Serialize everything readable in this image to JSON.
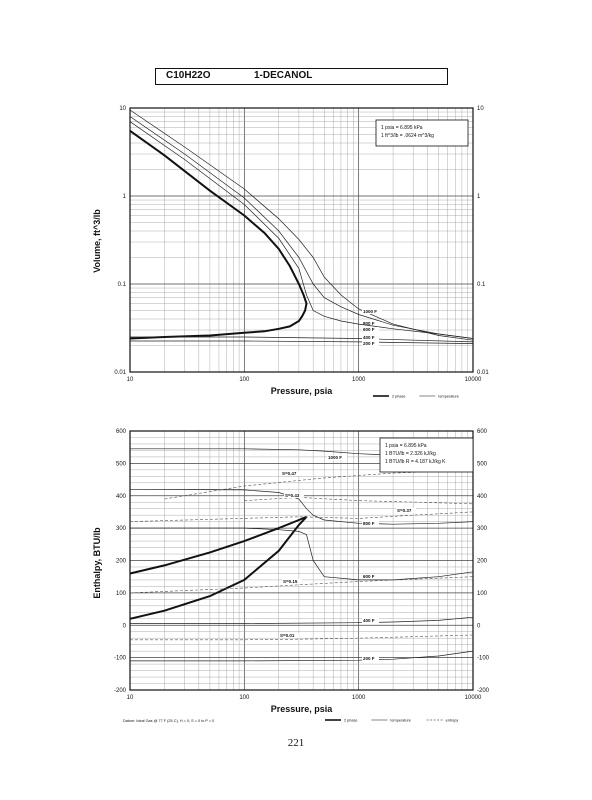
{
  "header": {
    "formula": "C10H22O",
    "name": "1-DECANOL"
  },
  "page_number": "221",
  "chart_data": [
    {
      "type": "line",
      "xlabel": "Pressure, psia",
      "ylabel": "Volume, ft^3/lb",
      "xscale": "log",
      "yscale": "log",
      "xlim": [
        10,
        10000
      ],
      "ylim": [
        0.01,
        10
      ],
      "x_ticks": [
        "10",
        "100",
        "1000",
        "10000"
      ],
      "y_ticks": [
        "0.01",
        "0.1",
        "1",
        "10"
      ],
      "conversions": [
        "1 psia = 6.895 kPa",
        "1 ft^3/lb = .0624 m^3/kg"
      ],
      "legend": [
        "2 phase",
        "temperature"
      ],
      "legend_placement": "bottom-right",
      "grid": true,
      "series": [
        {
          "kind": "2 phase",
          "x": [
            10,
            20,
            50,
            100,
            150,
            200,
            250,
            300,
            330,
            350,
            340,
            320,
            300,
            250,
            200,
            150,
            100,
            50,
            20,
            10
          ],
          "y": [
            5.5,
            2.9,
            1.15,
            0.6,
            0.38,
            0.25,
            0.16,
            0.1,
            0.075,
            0.06,
            0.05,
            0.043,
            0.038,
            0.033,
            0.031,
            0.029,
            0.028,
            0.026,
            0.025,
            0.024
          ]
        },
        {
          "name": "1000 F",
          "x": [
            10,
            30,
            100,
            200,
            300,
            400,
            500,
            700,
            1000,
            2000,
            5000,
            10000
          ],
          "y": [
            9.5,
            3.6,
            1.2,
            0.55,
            0.32,
            0.2,
            0.12,
            0.075,
            0.052,
            0.035,
            0.026,
            0.023
          ]
        },
        {
          "name": "800 F",
          "x": [
            10,
            30,
            100,
            200,
            300,
            400,
            500,
            700,
            1000,
            2000,
            5000,
            10000
          ],
          "y": [
            8.0,
            3.0,
            0.95,
            0.4,
            0.2,
            0.1,
            0.07,
            0.055,
            0.045,
            0.034,
            0.027,
            0.024
          ]
        },
        {
          "name": "600 F",
          "x": [
            10,
            30,
            100,
            200,
            300,
            350,
            400,
            500,
            700,
            1000,
            2000,
            5000,
            10000
          ],
          "y": [
            7.0,
            2.6,
            0.8,
            0.33,
            0.15,
            0.075,
            0.05,
            0.043,
            0.038,
            0.035,
            0.031,
            0.027,
            0.024
          ]
        },
        {
          "name": "400 F",
          "x": [
            10,
            100,
            1000,
            10000
          ],
          "y": [
            0.025,
            0.025,
            0.024,
            0.022
          ]
        },
        {
          "name": "200 F",
          "x": [
            10,
            100,
            1000,
            10000
          ],
          "y": [
            0.0225,
            0.0225,
            0.022,
            0.021
          ]
        }
      ]
    },
    {
      "type": "line",
      "xlabel": "Pressure, psia",
      "ylabel": "Enthalpy, BTU/lb",
      "xscale": "log",
      "yscale": "linear",
      "xlim": [
        10,
        10000
      ],
      "ylim": [
        -200,
        600
      ],
      "x_ticks": [
        "10",
        "100",
        "1000",
        "10000"
      ],
      "y_ticks": [
        "-200",
        "-100",
        "0",
        "100",
        "200",
        "300",
        "400",
        "500",
        "600"
      ],
      "conversions": [
        "1 psia = 6.895 kPa",
        "1 BTU/lb = 2.326 kJ/kg",
        "1 BTU/lb R = 4.187 kJ/kg K"
      ],
      "footnote": "Datum: Ideal Gas @ 77 F (25 C), H = 0, S = 0 to P = 0",
      "legend": [
        "2 phase",
        "temperature",
        "entropy"
      ],
      "legend_placement": "bottom-right",
      "grid": true,
      "series": [
        {
          "kind": "2 phase",
          "x": [
            10,
            20,
            50,
            100,
            200,
            300,
            350,
            330,
            300,
            200,
            100,
            50,
            20,
            10
          ],
          "y": [
            160,
            185,
            225,
            260,
            300,
            325,
            335,
            325,
            310,
            230,
            140,
            90,
            45,
            20
          ]
        },
        {
          "name": "1000 F",
          "x": [
            10,
            100,
            300,
            500,
            1000,
            2000,
            5000,
            10000
          ],
          "y": [
            545,
            545,
            542,
            538,
            530,
            525,
            528,
            535
          ]
        },
        {
          "name": "800 F",
          "x": [
            10,
            100,
            200,
            300,
            350,
            400,
            500,
            1000,
            2000,
            5000,
            10000
          ],
          "y": [
            420,
            418,
            410,
            390,
            360,
            340,
            325,
            315,
            312,
            315,
            320
          ]
        },
        {
          "name": "600 F",
          "x": [
            10,
            100,
            200,
            300,
            350,
            400,
            500,
            1000,
            2000,
            5000,
            10000
          ],
          "y": [
            300,
            300,
            295,
            290,
            280,
            200,
            150,
            140,
            140,
            150,
            165
          ]
        },
        {
          "name": "400 F",
          "x": [
            10,
            100,
            1000,
            2000,
            5000,
            10000
          ],
          "y": [
            5,
            5,
            8,
            10,
            15,
            25
          ]
        },
        {
          "name": "200 F",
          "x": [
            10,
            100,
            1000,
            2000,
            5000,
            10000
          ],
          "y": [
            -110,
            -110,
            -108,
            -105,
            -95,
            -80
          ]
        },
        {
          "name": "S=0.47",
          "kind": "entropy",
          "x": [
            20,
            100,
            500,
            2000,
            10000
          ],
          "y": [
            390,
            430,
            455,
            470,
            480
          ]
        },
        {
          "name": "S=0.43",
          "kind": "entropy",
          "x": [
            100,
            300,
            1000,
            10000
          ],
          "y": [
            385,
            395,
            385,
            375
          ]
        },
        {
          "name": "S=0.37",
          "kind": "entropy",
          "x": [
            10,
            300,
            1000,
            3000,
            10000
          ],
          "y": [
            320,
            335,
            330,
            340,
            350
          ]
        },
        {
          "name": "S=0.15",
          "kind": "entropy",
          "x": [
            10,
            100,
            300,
            1000,
            10000
          ],
          "y": [
            100,
            115,
            125,
            135,
            150
          ]
        },
        {
          "name": "S=0.01",
          "kind": "entropy",
          "x": [
            10,
            100,
            300,
            1000,
            10000
          ],
          "y": [
            -45,
            -45,
            -43,
            -40,
            -30
          ]
        }
      ]
    }
  ]
}
